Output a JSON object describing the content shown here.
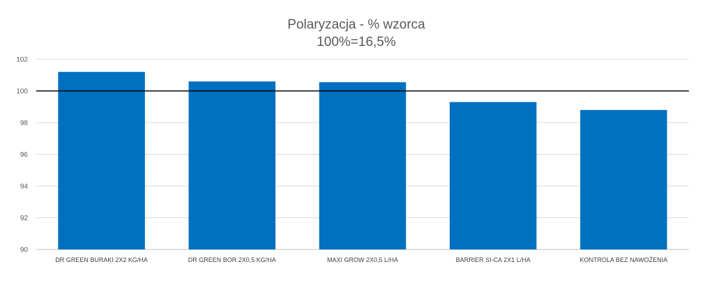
{
  "chart_data": {
    "type": "bar",
    "title": "Polaryzacja - % wzorca",
    "subtitle": "100%=16,5%",
    "categories": [
      "DR GREEN BURAKI 2X2 KG/HA",
      "DR GREEN BOR 2X0,5 KG/HA",
      "MAXI GROW 2X0,5 L/HA",
      "BARRIER SI-CA 2X1 L/HA",
      "KONTROLA BEZ NAWOŻENIA"
    ],
    "values": [
      101.2,
      100.6,
      100.55,
      99.3,
      98.8
    ],
    "ylim": [
      90,
      102
    ],
    "yticks": [
      90,
      92,
      94,
      96,
      98,
      100,
      102
    ],
    "reference_line": 100,
    "grid": true,
    "legend": "none",
    "colors": {
      "bar": "#0070C0",
      "reference": "#000000",
      "grid": "#D9D9D9"
    }
  }
}
